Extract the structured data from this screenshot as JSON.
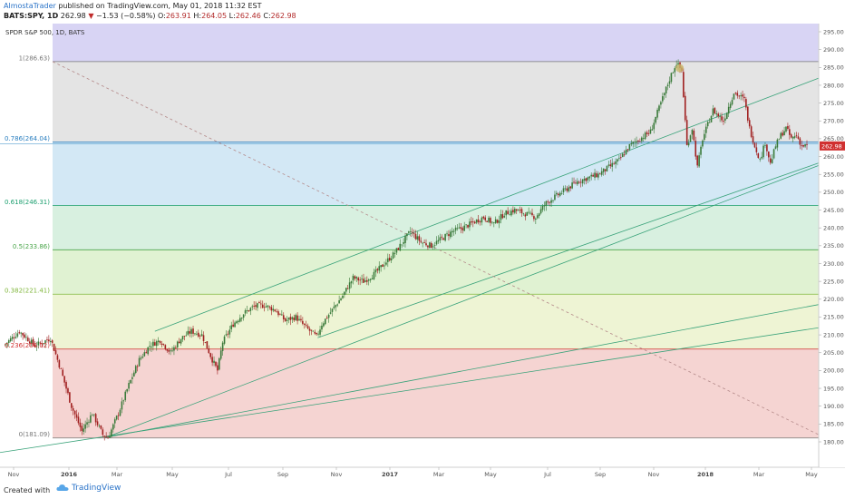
{
  "header": {
    "author": "AlmostaTrader",
    "published": "published on TradingView.com, May 01, 2018 11:32 EST",
    "symbol": "BATS:SPY, 1D",
    "last": "262.98",
    "arrow": "▼",
    "change": "−1.53 (−0.58%)",
    "o_label": "O:",
    "o_val": "263.91",
    "h_label": "H:",
    "h_val": "264.05",
    "l_label": "L:",
    "l_val": "262.46",
    "c_label": "C:",
    "c_val": "262.98"
  },
  "chart_data": {
    "type": "candlestick",
    "title": "SPDR S&P 500, 1D, BATS",
    "x_ticks": [
      "Nov",
      "2016",
      "Mar",
      "May",
      "Jul",
      "Sep",
      "Nov",
      "2017",
      "Mar",
      "May",
      "Jul",
      "Sep",
      "Nov",
      "2018",
      "Mar",
      "May"
    ],
    "y_ticks": [
      180,
      185,
      190,
      195,
      200,
      205,
      210,
      215,
      220,
      225,
      230,
      235,
      240,
      245,
      250,
      255,
      260,
      265,
      270,
      275,
      280,
      285,
      290,
      295
    ],
    "ylim": [
      178,
      298
    ],
    "last_price": 262.98,
    "price_path": [
      [
        0,
        207
      ],
      [
        3,
        211
      ],
      [
        6,
        207
      ],
      [
        9,
        209
      ],
      [
        11,
        200
      ],
      [
        13,
        190
      ],
      [
        15,
        183
      ],
      [
        17,
        188
      ],
      [
        19,
        182
      ],
      [
        20,
        181.1
      ],
      [
        22,
        188
      ],
      [
        24,
        196
      ],
      [
        26,
        203
      ],
      [
        28,
        207
      ],
      [
        30,
        208.5
      ],
      [
        32,
        205
      ],
      [
        34,
        209
      ],
      [
        36,
        211
      ],
      [
        38,
        210
      ],
      [
        40,
        203
      ],
      [
        41,
        200
      ],
      [
        42,
        208
      ],
      [
        44,
        213
      ],
      [
        46,
        216
      ],
      [
        48,
        218
      ],
      [
        50,
        218.3
      ],
      [
        52,
        217
      ],
      [
        54,
        214
      ],
      [
        56,
        215
      ],
      [
        58,
        212
      ],
      [
        60,
        209.5
      ],
      [
        61,
        213
      ],
      [
        63,
        217
      ],
      [
        65,
        221
      ],
      [
        67,
        226
      ],
      [
        69,
        225
      ],
      [
        71,
        227
      ],
      [
        73,
        230
      ],
      [
        75,
        233
      ],
      [
        77,
        237
      ],
      [
        78,
        239
      ],
      [
        80,
        236
      ],
      [
        82,
        235
      ],
      [
        84,
        237
      ],
      [
        86,
        239
      ],
      [
        88,
        240
      ],
      [
        90,
        241.5
      ],
      [
        92,
        243
      ],
      [
        94,
        241.2
      ],
      [
        96,
        244
      ],
      [
        98,
        245
      ],
      [
        100,
        244
      ],
      [
        102,
        243
      ],
      [
        104,
        247
      ],
      [
        106,
        249
      ],
      [
        108,
        251
      ],
      [
        110,
        253
      ],
      [
        112,
        254
      ],
      [
        114,
        255
      ],
      [
        116,
        257
      ],
      [
        118,
        259
      ],
      [
        120,
        263
      ],
      [
        122,
        265
      ],
      [
        124,
        267
      ],
      [
        126,
        275
      ],
      [
        128,
        283
      ],
      [
        129,
        286.3
      ],
      [
        130,
        284
      ],
      [
        131,
        263
      ],
      [
        132,
        268
      ],
      [
        133,
        257
      ],
      [
        134,
        265
      ],
      [
        136,
        273
      ],
      [
        138,
        270
      ],
      [
        140,
        278
      ],
      [
        142,
        276
      ],
      [
        143,
        268
      ],
      [
        144,
        263
      ],
      [
        145,
        259
      ],
      [
        146,
        264
      ],
      [
        147,
        258
      ],
      [
        148,
        263
      ],
      [
        149,
        266
      ],
      [
        150,
        268
      ],
      [
        151,
        265
      ],
      [
        152,
        266
      ],
      [
        153,
        263
      ],
      [
        154,
        262.98
      ]
    ],
    "fib_levels": [
      {
        "label": "1(286.63)",
        "value": 286.63,
        "color": "#777777",
        "fill": "#e4e4e4"
      },
      {
        "label": "0.786(264.04)",
        "value": 264.04,
        "color": "#2a7fc0",
        "fill": "#d3e8f5"
      },
      {
        "label": "0.618(246.31)",
        "value": 246.31,
        "color": "#1a9e6e",
        "fill": "#d8f0e0"
      },
      {
        "label": "0.5(233.86)",
        "value": 233.86,
        "color": "#4aa54a",
        "fill": "#e0f2d2"
      },
      {
        "label": "0.382(221.41)",
        "value": 221.41,
        "color": "#7fb63a",
        "fill": "#eef4d4"
      },
      {
        "label": "0.236(206.02)",
        "value": 206.02,
        "color": "#d03030",
        "fill": "#f5d4d2"
      },
      {
        "label": "0(181.09)",
        "value": 181.09,
        "color": "#777777",
        "fill": "#ffffff"
      }
    ],
    "band_top_fill": "#d8d4f4",
    "up_color": "#3a7a3a",
    "down_color": "#a02020",
    "marker_color": "#c9b86a"
  },
  "footer": {
    "created_with": "Created with",
    "brand": "TradingView"
  }
}
